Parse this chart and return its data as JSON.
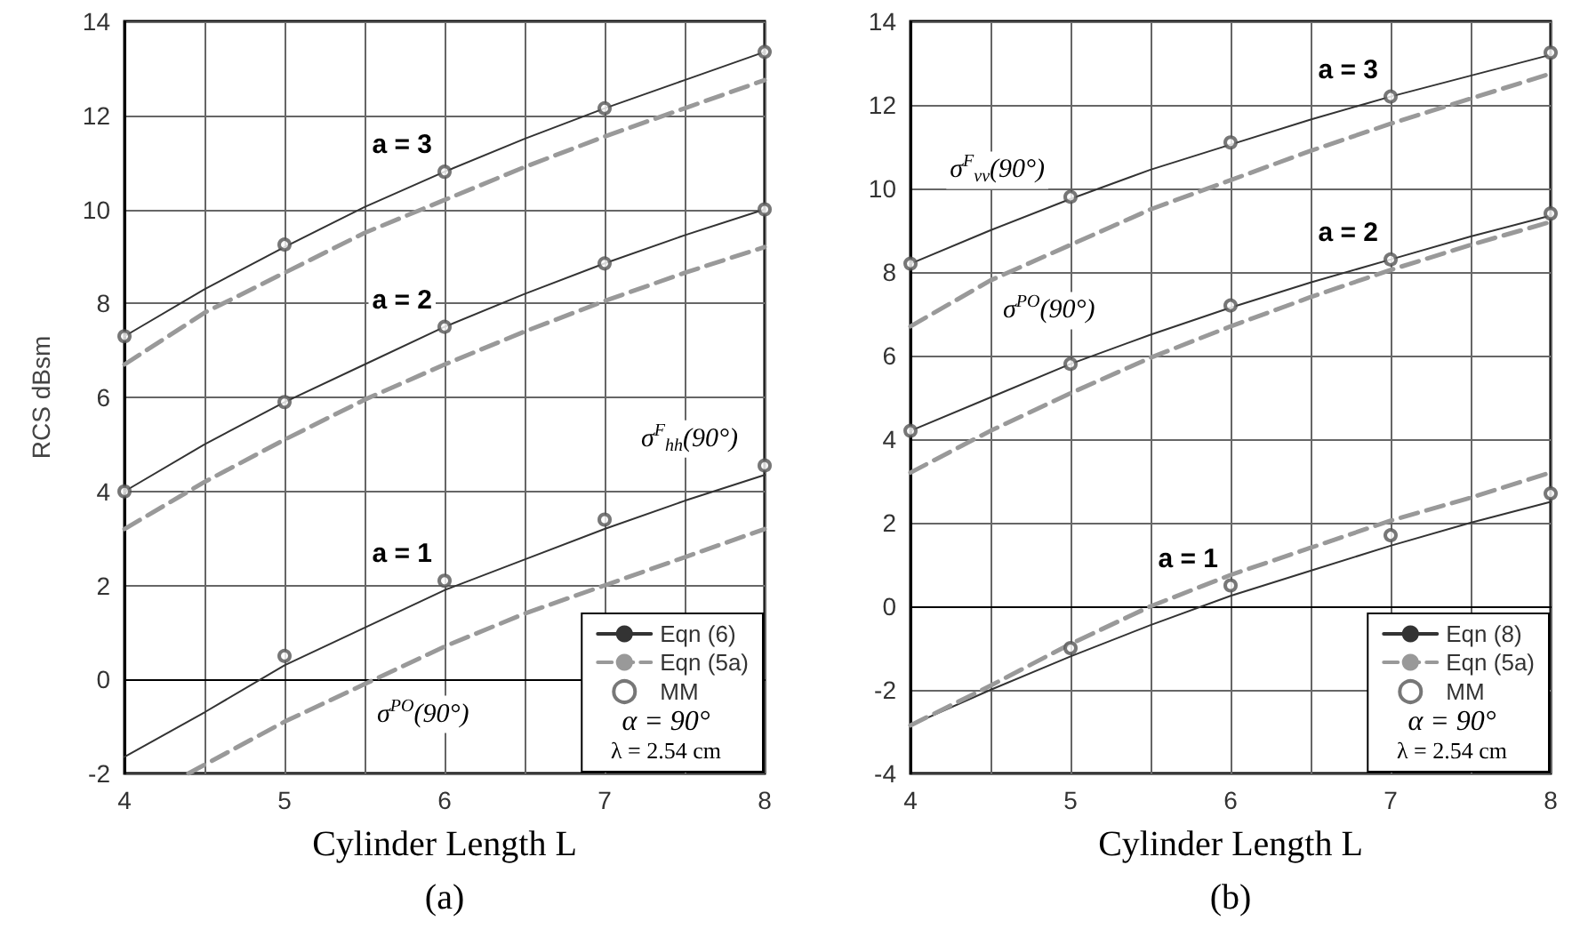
{
  "chart_data": [
    {
      "type": "line",
      "subtitle": "(a)",
      "xlabel": "Cylinder Length L",
      "ylabel": "RCS dBsm",
      "xlim": [
        4,
        8
      ],
      "ylim": [
        -2,
        14
      ],
      "xticks": [
        4,
        {
          "value": 4.5,
          "label": null
        },
        5,
        {
          "value": 5.5,
          "label": null
        },
        6,
        {
          "value": 6.5,
          "label": null
        },
        7,
        {
          "value": 7.5,
          "label": null
        },
        8
      ],
      "yticks": [
        -2,
        0,
        2,
        4,
        6,
        8,
        10,
        12,
        14
      ],
      "grid": true,
      "legend": "bottom right",
      "series": [
        {
          "name": "Eqn (6)",
          "type": "line",
          "line_style": "solid",
          "color": "#333333",
          "x": [
            4,
            4.5,
            5,
            5.5,
            6,
            6.5,
            7,
            7.5,
            8
          ],
          "values": [
            7.3,
            8.3,
            9.2,
            10.05,
            10.8,
            11.5,
            12.15,
            12.75,
            13.35
          ]
        },
        {
          "name": "Eqn (5a)",
          "type": "line",
          "line_style": "dashed",
          "color": "#999999",
          "x": [
            4,
            4.5,
            5,
            5.5,
            6,
            6.5,
            7,
            7.5,
            8
          ],
          "values": [
            6.7,
            7.8,
            8.65,
            9.5,
            10.2,
            10.9,
            11.55,
            12.15,
            12.75
          ]
        },
        {
          "name": "MM",
          "type": "scatter",
          "marker": "circle",
          "color": "#555555",
          "x": [
            4,
            5,
            6,
            7,
            8
          ],
          "values": [
            7.3,
            9.25,
            10.8,
            12.15,
            13.35
          ]
        },
        {
          "type": "line",
          "line_style": "solid",
          "color": "#333333",
          "x": [
            4,
            4.5,
            5,
            5.5,
            6,
            6.5,
            7,
            7.5,
            8
          ],
          "values": [
            4.0,
            5.0,
            5.9,
            6.7,
            7.5,
            8.2,
            8.85,
            9.45,
            10.0
          ]
        },
        {
          "type": "line",
          "line_style": "dashed",
          "color": "#999999",
          "x": [
            4,
            4.5,
            5,
            5.5,
            6,
            6.5,
            7,
            7.5,
            8
          ],
          "values": [
            3.2,
            4.2,
            5.1,
            5.95,
            6.7,
            7.4,
            8.05,
            8.65,
            9.2
          ]
        },
        {
          "type": "scatter",
          "marker": "circle",
          "color": "#555555",
          "x": [
            4,
            5,
            6,
            7,
            8
          ],
          "values": [
            4.0,
            5.9,
            7.5,
            8.85,
            10.0
          ]
        },
        {
          "type": "line",
          "line_style": "solid",
          "color": "#333333",
          "x": [
            4,
            4.5,
            5,
            5.5,
            6,
            6.5,
            7,
            7.5,
            8
          ],
          "values": [
            -1.65,
            -0.7,
            0.3,
            1.1,
            1.9,
            2.55,
            3.2,
            3.8,
            4.35
          ]
        },
        {
          "type": "line",
          "line_style": "dashed",
          "color": "#999999",
          "x": [
            4.4,
            5,
            5.5,
            6,
            6.5,
            7,
            7.5,
            8
          ],
          "values": [
            -2,
            -0.9,
            -0.1,
            0.7,
            1.4,
            2.0,
            2.6,
            3.2
          ]
        },
        {
          "type": "scatter",
          "marker": "circle",
          "color": "#555555",
          "x": [
            5,
            6,
            7,
            8
          ],
          "values": [
            0.5,
            2.1,
            3.4,
            4.55
          ]
        }
      ],
      "annotations": [
        {
          "text": "a = 3",
          "x": 6,
          "y": 10.8
        },
        {
          "text": "a = 2",
          "x": 6,
          "y": 7.5
        },
        {
          "text": "a = 1",
          "x": 6,
          "y": 2.1
        },
        {
          "text": "σ$^{F}$$_{hh}$(90°)",
          "x": 8,
          "y": 4.55
        },
        {
          "text": "σ$^{PO}$(90°)",
          "x": 5.5,
          "y": -0.1
        },
        "α = 90°",
        "λ = 2.54 cm"
      ]
    },
    {
      "type": "line",
      "subtitle": "(b)",
      "xlabel": "Cylinder Length L",
      "xlim": [
        4,
        8
      ],
      "ylim": [
        -4,
        14
      ],
      "xticks": [
        4,
        {
          "value": 4.5,
          "label": null
        },
        5,
        {
          "value": 5.5,
          "label": null
        },
        6,
        {
          "value": 6.5,
          "label": null
        },
        7,
        {
          "value": 7.5,
          "label": null
        },
        8
      ],
      "yticks": [
        -4,
        -2,
        0,
        2,
        4,
        6,
        8,
        10,
        12,
        14
      ],
      "grid": true,
      "legend": "bottom right",
      "series": [
        {
          "name": "Eqn (8)",
          "type": "line",
          "line_style": "solid",
          "color": "#333333",
          "x": [
            4,
            4.5,
            5,
            5.5,
            6,
            6.5,
            7,
            7.5,
            8
          ],
          "values": [
            8.2,
            9.0,
            9.75,
            10.45,
            11.05,
            11.65,
            12.2,
            12.7,
            13.2
          ]
        },
        {
          "name": "Eqn (5a)",
          "type": "line",
          "line_style": "dashed",
          "color": "#999999",
          "x": [
            4,
            4.5,
            5,
            5.5,
            6,
            6.5,
            7,
            7.5,
            8
          ],
          "values": [
            6.7,
            7.8,
            8.65,
            9.5,
            10.2,
            10.9,
            11.55,
            12.15,
            12.75
          ]
        },
        {
          "name": "MM",
          "type": "scatter",
          "marker": "circle",
          "color": "#555555",
          "x": [
            4,
            5,
            6,
            7,
            8
          ],
          "values": [
            8.2,
            9.8,
            11.1,
            12.2,
            13.25
          ]
        },
        {
          "type": "line",
          "line_style": "solid",
          "color": "#333333",
          "x": [
            4,
            4.5,
            5,
            5.5,
            6,
            6.5,
            7,
            7.5,
            8
          ],
          "values": [
            4.2,
            5.0,
            5.8,
            6.5,
            7.15,
            7.75,
            8.3,
            8.85,
            9.35
          ]
        },
        {
          "type": "line",
          "line_style": "dashed",
          "color": "#999999",
          "x": [
            4,
            4.5,
            5,
            5.5,
            6,
            6.5,
            7,
            7.5,
            8
          ],
          "values": [
            3.2,
            4.2,
            5.1,
            5.95,
            6.7,
            7.4,
            8.05,
            8.65,
            9.2
          ]
        },
        {
          "type": "scatter",
          "marker": "circle",
          "color": "#555555",
          "x": [
            4,
            5,
            6,
            7,
            8
          ],
          "values": [
            4.2,
            5.8,
            7.2,
            8.3,
            9.4
          ]
        },
        {
          "type": "line",
          "line_style": "solid",
          "color": "#333333",
          "x": [
            4,
            4.5,
            5,
            5.5,
            6,
            6.5,
            7,
            7.5,
            8
          ],
          "values": [
            -2.85,
            -2.0,
            -1.2,
            -0.45,
            0.25,
            0.85,
            1.45,
            2.0,
            2.5
          ]
        },
        {
          "type": "line",
          "line_style": "dashed",
          "color": "#999999",
          "x": [
            4,
            4.5,
            5,
            5.5,
            6,
            6.5,
            7,
            7.5,
            8
          ],
          "values": [
            -2.85,
            -1.9,
            -0.9,
            0.0,
            0.75,
            1.4,
            2.05,
            2.6,
            3.2
          ]
        },
        {
          "type": "scatter",
          "marker": "circle",
          "color": "#555555",
          "x": [
            5,
            6,
            7,
            8
          ],
          "values": [
            -1.0,
            0.5,
            1.7,
            2.7
          ]
        }
      ],
      "annotations": [
        {
          "text": "a = 3",
          "x": 7,
          "y": 12.2
        },
        {
          "text": "a = 2",
          "x": 7,
          "y": 8.3
        },
        {
          "text": "a = 1",
          "x": 6,
          "y": 0.5
        },
        {
          "text": "σ$^{F}$$_{vv}$(90°)",
          "x": 5,
          "y": 9.8
        },
        {
          "text": "σ$^{PO}$(90°)",
          "x": 4.5,
          "y": 7.8
        },
        "α = 90°",
        "λ = 2.54 cm"
      ]
    }
  ]
}
